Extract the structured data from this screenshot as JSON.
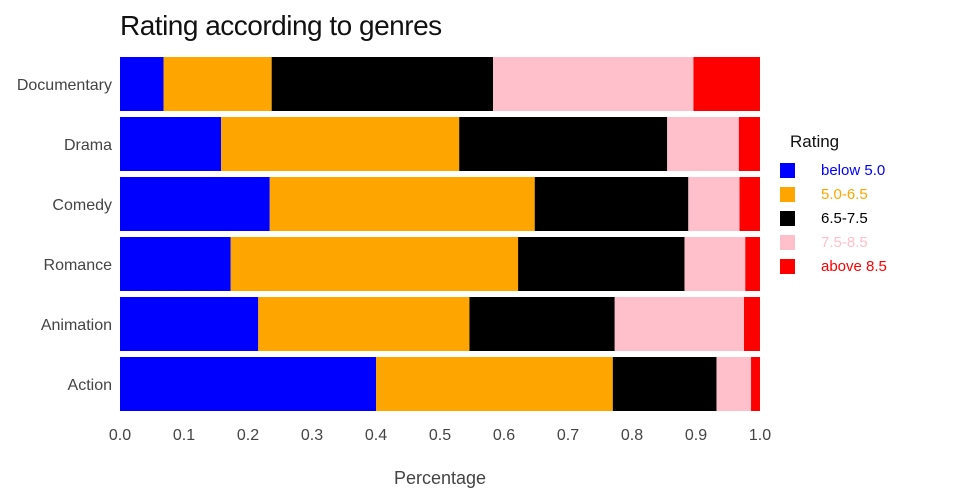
{
  "chart_data": {
    "type": "bar",
    "orientation": "horizontal",
    "stacked": true,
    "title": "Rating according to genres",
    "xlabel": "Percentage",
    "ylabel": "",
    "xlim": [
      0.0,
      1.0
    ],
    "xticks": [
      "0.0",
      "0.1",
      "0.2",
      "0.3",
      "0.4",
      "0.5",
      "0.6",
      "0.7",
      "0.8",
      "0.9",
      "1.0"
    ],
    "categories": [
      "Documentary",
      "Drama",
      "Comedy",
      "Romance",
      "Animation",
      "Action"
    ],
    "legend_title": "Rating",
    "legend_position": "right",
    "series": [
      {
        "name": "below 5.0",
        "color": "#0000ff",
        "values": [
          0.068,
          0.158,
          0.234,
          0.173,
          0.216,
          0.4
        ]
      },
      {
        "name": "5.0-6.5",
        "color": "#ffa500",
        "values": [
          0.169,
          0.372,
          0.414,
          0.449,
          0.33,
          0.37
        ]
      },
      {
        "name": "6.5-7.5",
        "color": "#000000",
        "values": [
          0.346,
          0.325,
          0.24,
          0.26,
          0.227,
          0.162
        ]
      },
      {
        "name": "7.5-8.5",
        "color": "#ffc0cb",
        "values": [
          0.313,
          0.112,
          0.08,
          0.095,
          0.202,
          0.054
        ]
      },
      {
        "name": "above 8.5",
        "color": "#ff0000",
        "values": [
          0.104,
          0.033,
          0.032,
          0.023,
          0.025,
          0.014
        ]
      }
    ]
  }
}
